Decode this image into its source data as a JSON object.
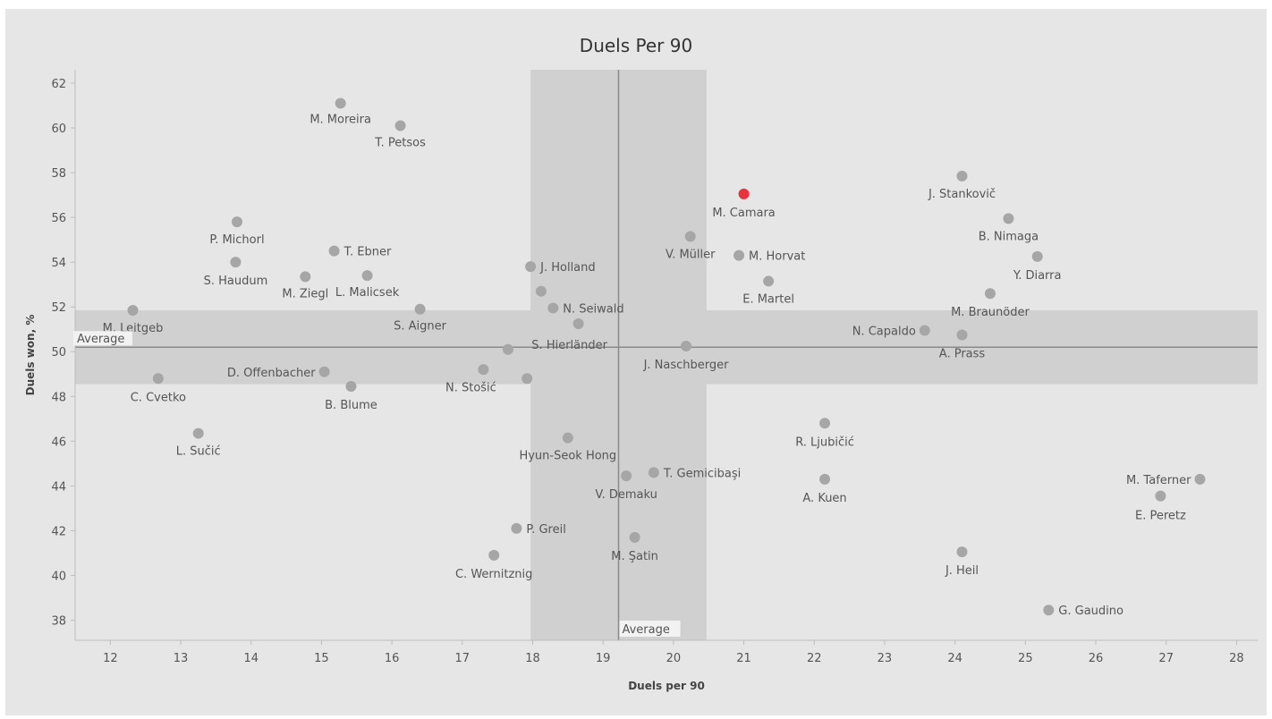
{
  "chart_data": {
    "type": "scatter",
    "title": "Duels Per 90",
    "xlabel": "Duels per 90",
    "ylabel": "Duels won, %",
    "xlim": [
      11.5,
      28.3
    ],
    "ylim": [
      37.1,
      62.6
    ],
    "xticks": [
      12,
      13,
      14,
      15,
      16,
      17,
      18,
      19,
      20,
      21,
      22,
      23,
      24,
      25,
      26,
      27,
      28
    ],
    "yticks": [
      38,
      40,
      42,
      44,
      46,
      48,
      50,
      52,
      54,
      56,
      58,
      60,
      62
    ],
    "grid": false,
    "average_label": "Average",
    "x_average": 19.22,
    "x_band": [
      17.97,
      20.47
    ],
    "y_average": 50.2,
    "y_band": [
      48.55,
      51.85
    ],
    "colors": {
      "point": "#a6a6a6",
      "highlight": "#e8323c",
      "band": "#d0d0d0",
      "line": "#8a8a8a"
    },
    "points": [
      {
        "label": "M. Moreira",
        "x": 15.27,
        "y": 61.1
      },
      {
        "label": "T. Petsos",
        "x": 16.12,
        "y": 60.1
      },
      {
        "label": "P. Michorl",
        "x": 13.8,
        "y": 55.8
      },
      {
        "label": "T. Ebner",
        "x": 15.18,
        "y": 54.5
      },
      {
        "label": "S. Haudum",
        "x": 13.78,
        "y": 54.0
      },
      {
        "label": "M. Ziegl",
        "x": 14.77,
        "y": 53.35
      },
      {
        "label": "L. Malicsek",
        "x": 15.65,
        "y": 53.4
      },
      {
        "label": "S. Aigner",
        "x": 16.4,
        "y": 51.9
      },
      {
        "label": "M. Leitgeb",
        "x": 12.32,
        "y": 51.85
      },
      {
        "label": "D. Offenbacher",
        "x": 15.04,
        "y": 49.1
      },
      {
        "label": "C. Cvetko",
        "x": 12.68,
        "y": 48.8
      },
      {
        "label": "B. Blume",
        "x": 15.42,
        "y": 48.45
      },
      {
        "label": "L. Sučić",
        "x": 13.25,
        "y": 46.35
      },
      {
        "label": "J. Holland",
        "x": 17.97,
        "y": 53.8
      },
      {
        "label": "",
        "x": 18.12,
        "y": 52.7
      },
      {
        "label": "N. Seiwald",
        "x": 18.29,
        "y": 51.95
      },
      {
        "label": "S. Hierländer",
        "x": 18.65,
        "y": 51.25
      },
      {
        "label": "",
        "x": 17.65,
        "y": 50.1
      },
      {
        "label": "N. Stošić",
        "x": 17.3,
        "y": 49.2
      },
      {
        "label": "",
        "x": 17.92,
        "y": 48.8
      },
      {
        "label": "Hyun-Seok Hong",
        "x": 18.5,
        "y": 46.15
      },
      {
        "label": "V. Müller",
        "x": 20.24,
        "y": 55.15
      },
      {
        "label": "M. Camara",
        "x": 21.0,
        "y": 57.05,
        "highlight": true
      },
      {
        "label": "M. Horvat",
        "x": 20.93,
        "y": 54.3
      },
      {
        "label": "E. Martel",
        "x": 21.35,
        "y": 53.15
      },
      {
        "label": "J. Naschberger",
        "x": 20.18,
        "y": 50.25
      },
      {
        "label": "V. Demaku",
        "x": 19.33,
        "y": 44.45
      },
      {
        "label": "T. Gemicibaşi",
        "x": 19.72,
        "y": 44.6
      },
      {
        "label": "P. Greil",
        "x": 17.77,
        "y": 42.1
      },
      {
        "label": "M. Şatin",
        "x": 19.45,
        "y": 41.7
      },
      {
        "label": "C. Wernitznig",
        "x": 17.45,
        "y": 40.9
      },
      {
        "label": "J. Stankovič",
        "x": 24.1,
        "y": 57.85
      },
      {
        "label": "B. Nimaga",
        "x": 24.76,
        "y": 55.95
      },
      {
        "label": "Y. Diarra",
        "x": 25.17,
        "y": 54.25
      },
      {
        "label": "M. Braunöder",
        "x": 24.5,
        "y": 52.6
      },
      {
        "label": "N. Capaldo",
        "x": 23.57,
        "y": 50.95
      },
      {
        "label": "A. Prass",
        "x": 24.1,
        "y": 50.75
      },
      {
        "label": "R. Ljubičić",
        "x": 22.15,
        "y": 46.8
      },
      {
        "label": "A. Kuen",
        "x": 22.15,
        "y": 44.3
      },
      {
        "label": "J. Heil",
        "x": 24.1,
        "y": 41.05
      },
      {
        "label": "G. Gaudino",
        "x": 25.33,
        "y": 38.45
      },
      {
        "label": "M. Taferner",
        "x": 27.48,
        "y": 44.3
      },
      {
        "label": "E. Peretz",
        "x": 26.92,
        "y": 43.55
      }
    ]
  }
}
